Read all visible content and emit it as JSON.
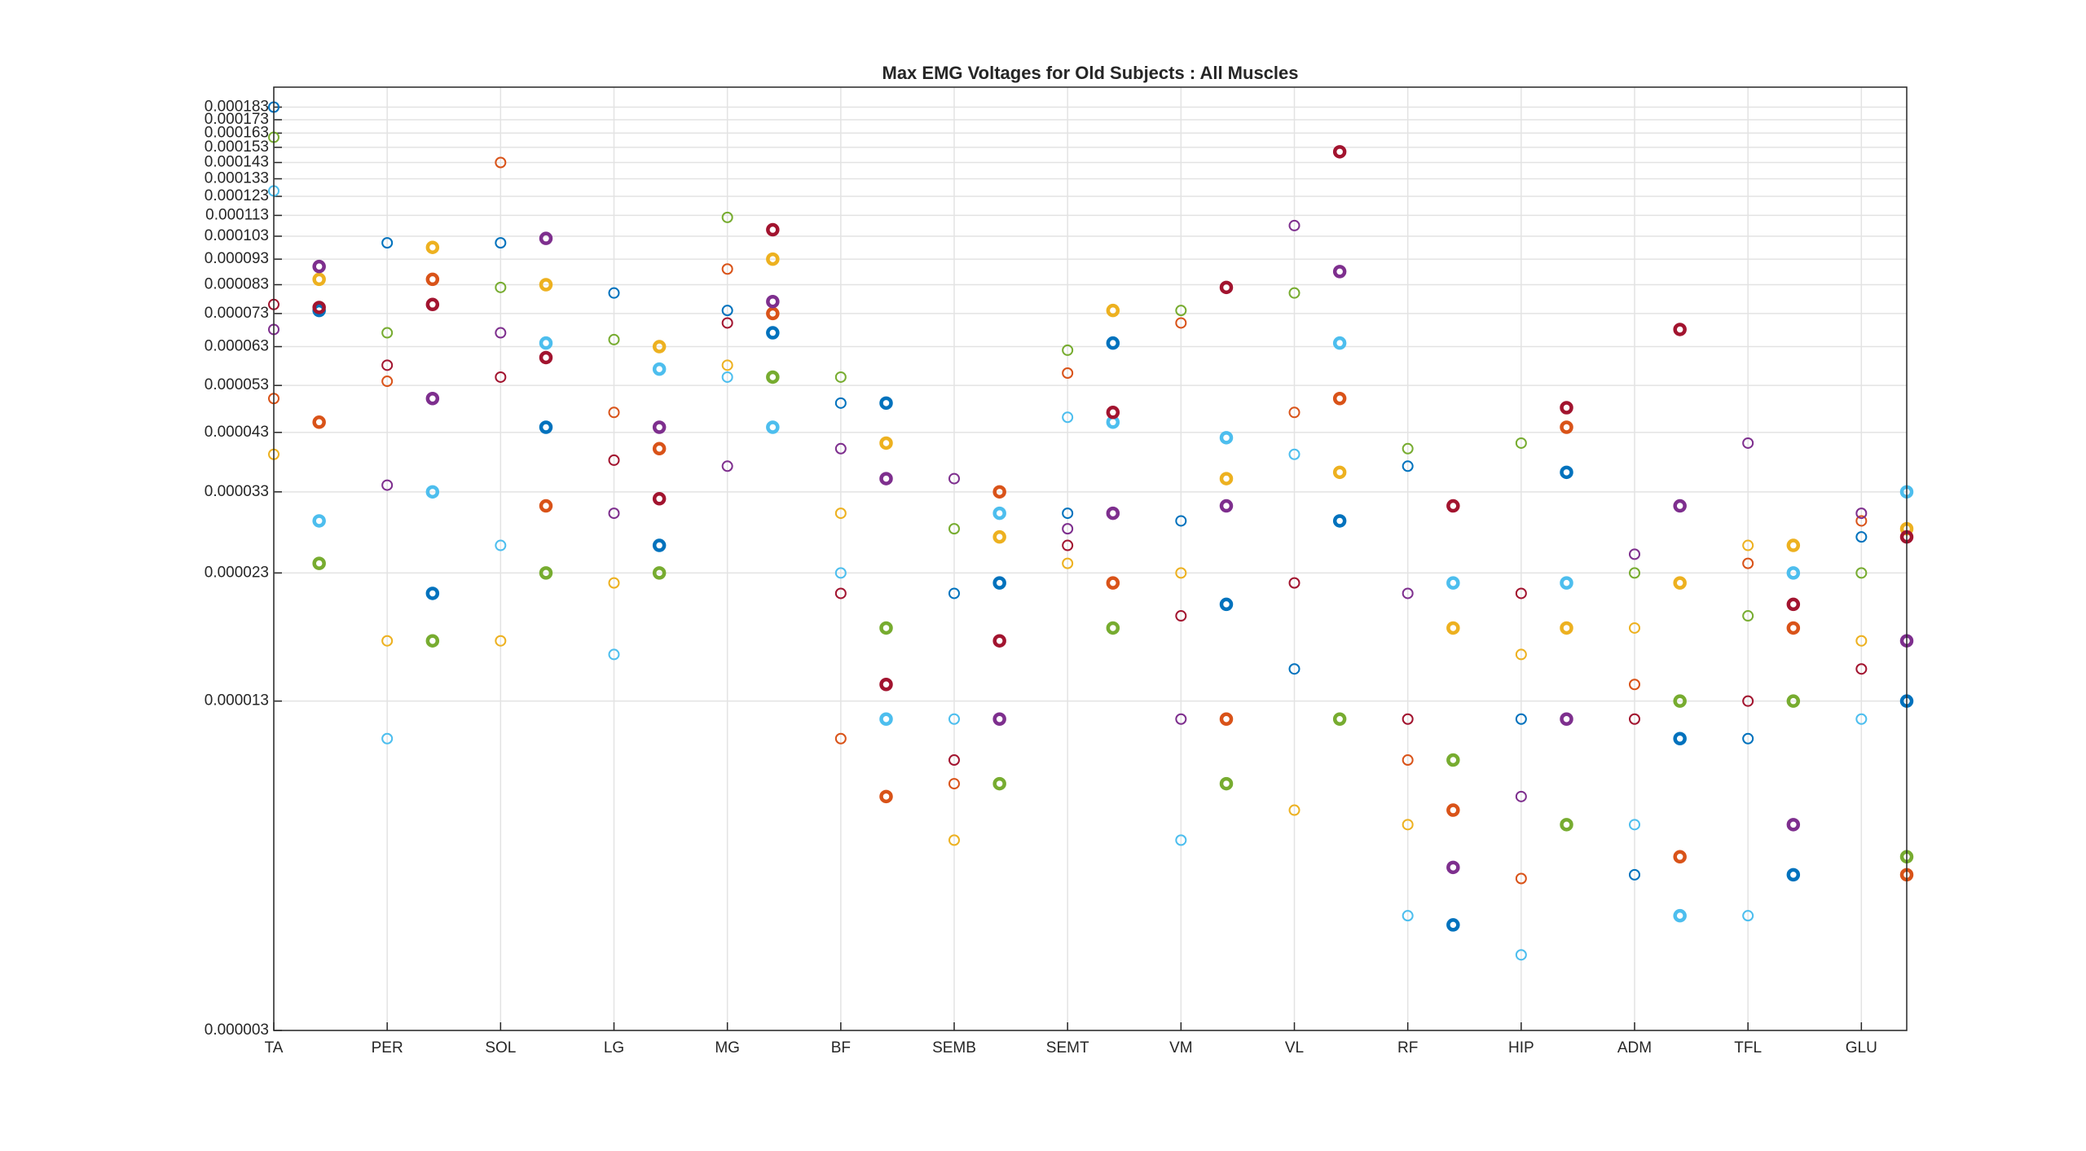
{
  "chart_data": {
    "type": "scatter",
    "title": "Max EMG Voltages for Old Subjects : All Muscles",
    "yscale": "log",
    "grid": true,
    "xlim": [
      1,
      15.4
    ],
    "xticks": [
      {
        "value": 1,
        "label": "TA"
      },
      {
        "value": 2,
        "label": "PER"
      },
      {
        "value": 3,
        "label": "SOL"
      },
      {
        "value": 4,
        "label": "LG"
      },
      {
        "value": 5,
        "label": "MG"
      },
      {
        "value": 6,
        "label": "BF"
      },
      {
        "value": 7,
        "label": "SEMB"
      },
      {
        "value": 8,
        "label": "SEMT"
      },
      {
        "value": 9,
        "label": "VM"
      },
      {
        "value": 10,
        "label": "VL"
      },
      {
        "value": 11,
        "label": "RF"
      },
      {
        "value": 12,
        "label": "HIP"
      },
      {
        "value": 13,
        "label": "ADM"
      },
      {
        "value": 14,
        "label": "TFL"
      },
      {
        "value": 15,
        "label": "GLU"
      }
    ],
    "ylim": [
      3e-06,
      0.0002
    ],
    "yticks": [
      3e-06,
      1.3e-05,
      2.3e-05,
      3.3e-05,
      4.3e-05,
      5.3e-05,
      6.3e-05,
      7.3e-05,
      8.3e-05,
      9.3e-05,
      0.000103,
      0.000113,
      0.000123,
      0.000133,
      0.000143,
      0.000153,
      0.000163,
      0.000173,
      0.000183
    ],
    "series": [
      {
        "color": "#0072BD",
        "marker": "thin",
        "x": [
          1,
          2,
          3,
          4,
          5,
          6,
          7,
          8,
          9,
          10,
          11,
          12,
          13,
          14,
          15
        ],
        "values": [
          0.000183,
          0.0001,
          0.0001,
          8e-05,
          7.4e-05,
          4.9e-05,
          2.1e-05,
          3e-05,
          2.9e-05,
          1.5e-05,
          3.7e-05,
          1.2e-05,
          6e-06,
          1.1e-05,
          2.7e-05
        ]
      },
      {
        "color": "#D95319",
        "marker": "thin",
        "x": [
          1,
          2,
          3,
          4,
          5,
          6,
          7,
          8,
          9,
          10,
          11,
          12,
          13,
          14,
          15
        ],
        "values": [
          5e-05,
          5.4e-05,
          0.000143,
          4.7e-05,
          8.9e-05,
          1.1e-05,
          9e-06,
          5.6e-05,
          7e-05,
          4.7e-05,
          1e-05,
          5.9e-06,
          1.4e-05,
          2.4e-05,
          2.9e-05
        ]
      },
      {
        "color": "#EDB120",
        "marker": "thin",
        "x": [
          1,
          2,
          3,
          4,
          5,
          6,
          7,
          8,
          9,
          10,
          11,
          12,
          13,
          14,
          15
        ],
        "values": [
          3.9e-05,
          1.7e-05,
          1.7e-05,
          2.2e-05,
          5.8e-05,
          3e-05,
          7e-06,
          2.4e-05,
          2.3e-05,
          8e-06,
          7.5e-06,
          1.6e-05,
          1.8e-05,
          2.6e-05,
          1.7e-05
        ]
      },
      {
        "color": "#7E2F8E",
        "marker": "thin",
        "x": [
          1,
          2,
          3,
          4,
          5,
          6,
          7,
          8,
          9,
          10,
          11,
          12,
          13,
          14,
          15
        ],
        "values": [
          6.8e-05,
          3.4e-05,
          6.7e-05,
          3e-05,
          3.7e-05,
          4e-05,
          3.5e-05,
          2.8e-05,
          1.2e-05,
          0.000108,
          2.1e-05,
          8.5e-06,
          2.5e-05,
          4.1e-05,
          3e-05
        ]
      },
      {
        "color": "#77AC30",
        "marker": "thin",
        "x": [
          1,
          2,
          3,
          4,
          5,
          6,
          7,
          8,
          9,
          10,
          11,
          12,
          13,
          14,
          15
        ],
        "values": [
          0.00016,
          6.7e-05,
          8.2e-05,
          6.5e-05,
          0.000112,
          5.5e-05,
          2.8e-05,
          6.2e-05,
          7.4e-05,
          8e-05,
          4e-05,
          4.1e-05,
          2.3e-05,
          1.9e-05,
          2.3e-05
        ]
      },
      {
        "color": "#4DBEEE",
        "marker": "thin",
        "x": [
          1,
          2,
          3,
          4,
          5,
          6,
          7,
          8,
          9,
          10,
          11,
          12,
          13,
          14,
          15
        ],
        "values": [
          0.000126,
          1.1e-05,
          2.6e-05,
          1.6e-05,
          5.5e-05,
          2.3e-05,
          1.2e-05,
          4.6e-05,
          7e-06,
          3.9e-05,
          5e-06,
          4.2e-06,
          7.5e-06,
          5e-06,
          1.2e-05
        ]
      },
      {
        "color": "#A2142F",
        "marker": "thin",
        "x": [
          1,
          2,
          3,
          4,
          5,
          6,
          7,
          8,
          9,
          10,
          11,
          12,
          13,
          14,
          15
        ],
        "values": [
          7.6e-05,
          5.8e-05,
          5.5e-05,
          3.8e-05,
          7e-05,
          2.1e-05,
          1e-05,
          2.6e-05,
          1.9e-05,
          2.2e-05,
          1.2e-05,
          2.1e-05,
          1.2e-05,
          1.3e-05,
          1.5e-05
        ]
      },
      {
        "color": "#0072BD",
        "marker": "thick",
        "x": [
          1.4,
          2.4,
          3.4,
          4.4,
          5.4,
          6.4,
          7.4,
          8.4,
          9.4,
          10.4,
          11.4,
          12.4,
          13.4,
          14.4,
          15.4
        ],
        "values": [
          7.4e-05,
          2.1e-05,
          4.4e-05,
          2.6e-05,
          6.7e-05,
          4.9e-05,
          2.2e-05,
          6.4e-05,
          2e-05,
          2.9e-05,
          4.8e-06,
          3.6e-05,
          1.1e-05,
          6e-06,
          1.3e-05
        ]
      },
      {
        "color": "#D95319",
        "marker": "thick",
        "x": [
          1.4,
          2.4,
          3.4,
          4.4,
          5.4,
          6.4,
          7.4,
          8.4,
          9.4,
          10.4,
          11.4,
          12.4,
          13.4,
          14.4,
          15.4
        ],
        "values": [
          4.5e-05,
          8.5e-05,
          3.1e-05,
          4e-05,
          7.3e-05,
          8.5e-06,
          3.3e-05,
          2.2e-05,
          1.2e-05,
          5e-05,
          8e-06,
          4.4e-05,
          6.5e-06,
          1.8e-05,
          6e-06
        ]
      },
      {
        "color": "#EDB120",
        "marker": "thick",
        "x": [
          1.4,
          2.4,
          3.4,
          4.4,
          5.4,
          6.4,
          7.4,
          8.4,
          9.4,
          10.4,
          11.4,
          12.4,
          13.4,
          14.4,
          15.4
        ],
        "values": [
          8.5e-05,
          9.8e-05,
          8.3e-05,
          6.3e-05,
          9.3e-05,
          4.1e-05,
          2.7e-05,
          7.4e-05,
          3.5e-05,
          3.6e-05,
          1.8e-05,
          1.8e-05,
          2.2e-05,
          2.6e-05,
          2.8e-05
        ]
      },
      {
        "color": "#7E2F8E",
        "marker": "thick",
        "x": [
          1.4,
          2.4,
          3.4,
          4.4,
          5.4,
          6.4,
          7.4,
          8.4,
          9.4,
          10.4,
          11.4,
          12.4,
          13.4,
          14.4,
          15.4
        ],
        "values": [
          9e-05,
          5e-05,
          0.000102,
          4.4e-05,
          7.7e-05,
          3.5e-05,
          1.2e-05,
          3e-05,
          3.1e-05,
          8.8e-05,
          6.2e-06,
          1.2e-05,
          3.1e-05,
          7.5e-06,
          1.7e-05
        ]
      },
      {
        "color": "#77AC30",
        "marker": "thick",
        "x": [
          1.4,
          2.4,
          3.4,
          4.4,
          5.4,
          6.4,
          7.4,
          8.4,
          9.4,
          10.4,
          11.4,
          12.4,
          13.4,
          14.4,
          15.4
        ],
        "values": [
          2.4e-05,
          1.7e-05,
          2.3e-05,
          2.3e-05,
          5.5e-05,
          1.8e-05,
          9e-06,
          1.8e-05,
          9e-06,
          1.2e-05,
          1e-05,
          7.5e-06,
          1.3e-05,
          1.3e-05,
          6.5e-06
        ]
      },
      {
        "color": "#4DBEEE",
        "marker": "thick",
        "x": [
          1.4,
          2.4,
          3.4,
          4.4,
          5.4,
          6.4,
          7.4,
          8.4,
          9.4,
          10.4,
          11.4,
          12.4,
          13.4,
          14.4,
          15.4
        ],
        "values": [
          2.9e-05,
          3.3e-05,
          6.4e-05,
          5.7e-05,
          4.4e-05,
          1.2e-05,
          3e-05,
          4.5e-05,
          4.2e-05,
          6.4e-05,
          2.2e-05,
          2.2e-05,
          5e-06,
          2.3e-05,
          3.3e-05
        ]
      },
      {
        "color": "#A2142F",
        "marker": "thick",
        "x": [
          1.4,
          2.4,
          3.4,
          4.4,
          5.4,
          6.4,
          7.4,
          8.4,
          9.4,
          10.4,
          11.4,
          12.4,
          13.4,
          14.4,
          15.4
        ],
        "values": [
          7.5e-05,
          7.6e-05,
          6e-05,
          3.2e-05,
          0.000106,
          1.4e-05,
          1.7e-05,
          4.7e-05,
          8.2e-05,
          0.00015,
          3.1e-05,
          4.8e-05,
          6.8e-05,
          2e-05,
          2.7e-05
        ]
      }
    ]
  }
}
